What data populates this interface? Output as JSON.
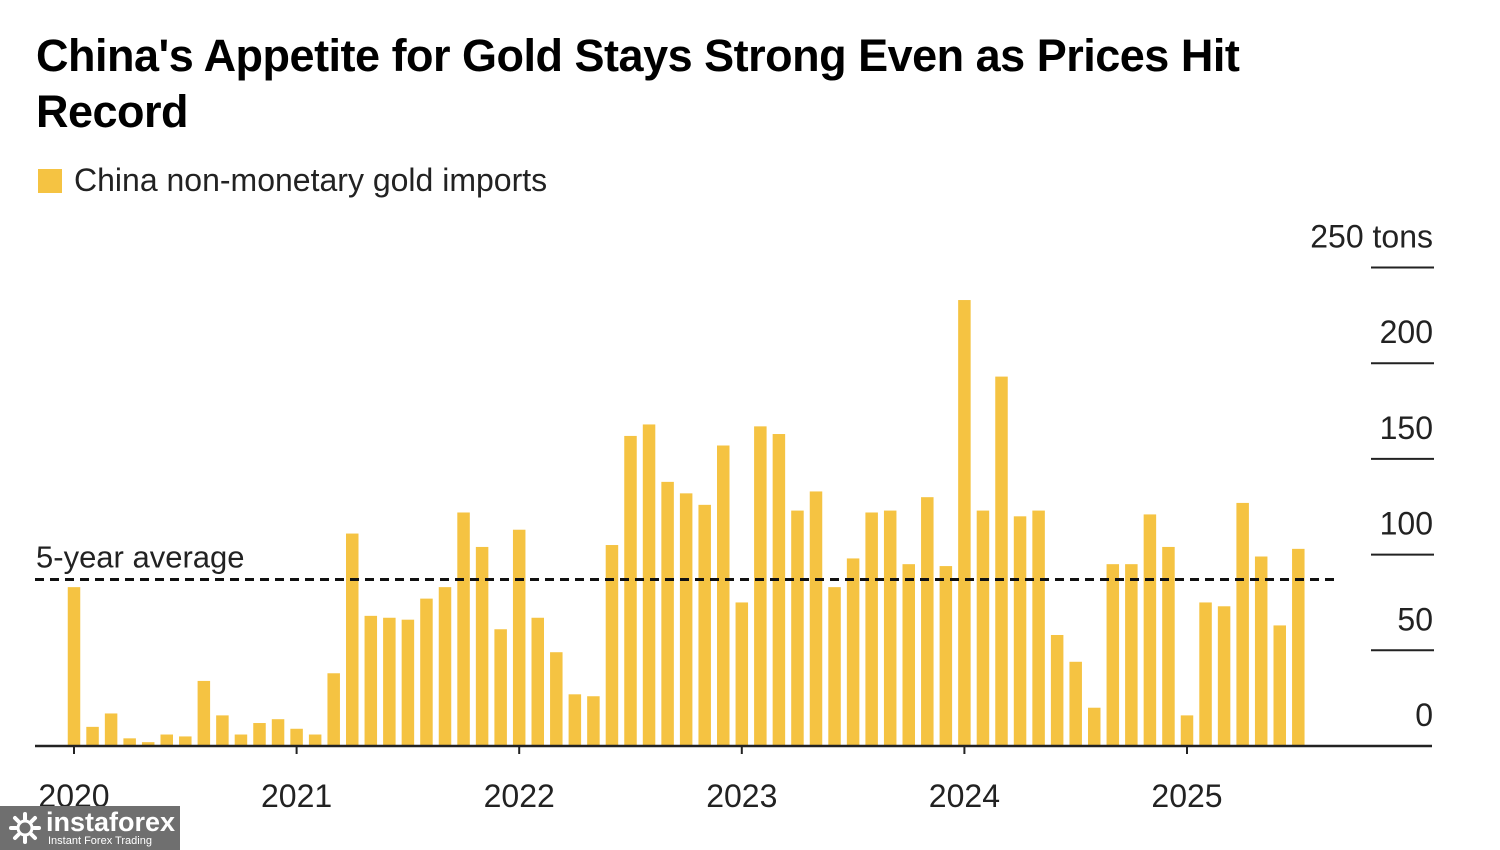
{
  "chart_data": {
    "type": "bar",
    "title": "China's Appetite for Gold Stays Strong Even as Prices Hit Record",
    "legend": [
      {
        "name": "China non-monetary gold imports",
        "color": "#F5C342"
      }
    ],
    "series": [
      {
        "name": "China non-monetary gold imports",
        "color": "#F5C342",
        "start": "2020-01",
        "values": [
          83,
          10,
          17,
          4,
          2,
          6,
          5,
          34,
          16,
          6,
          12,
          14,
          9,
          6,
          38,
          111,
          68,
          67,
          66,
          77,
          83,
          122,
          104,
          61,
          113,
          67,
          49,
          27,
          26,
          105,
          162,
          168,
          138,
          132,
          126,
          157,
          75,
          167,
          163,
          123,
          133,
          83,
          98,
          122,
          123,
          95,
          130,
          94,
          233,
          123,
          193,
          120,
          123,
          58,
          44,
          20,
          95,
          95,
          121,
          104,
          16,
          75,
          73,
          127,
          99,
          63,
          103
        ]
      }
    ],
    "y_unit": "tons",
    "ylim": [
      0,
      250
    ],
    "yticks": [
      {
        "value": 0,
        "label": "0"
      },
      {
        "value": 50,
        "label": "50"
      },
      {
        "value": 100,
        "label": "100"
      },
      {
        "value": 150,
        "label": "150"
      },
      {
        "value": 200,
        "label": "200"
      },
      {
        "value": 250,
        "label": "250 tons"
      }
    ],
    "xticks": [
      "2020",
      "2021",
      "2022",
      "2023",
      "2024",
      "2025"
    ],
    "average": {
      "label": "5-year average",
      "value": 87
    },
    "grid": false,
    "legend_position": "top-left"
  },
  "watermark": {
    "brand": "instaforex",
    "tagline": "Instant Forex Trading"
  }
}
